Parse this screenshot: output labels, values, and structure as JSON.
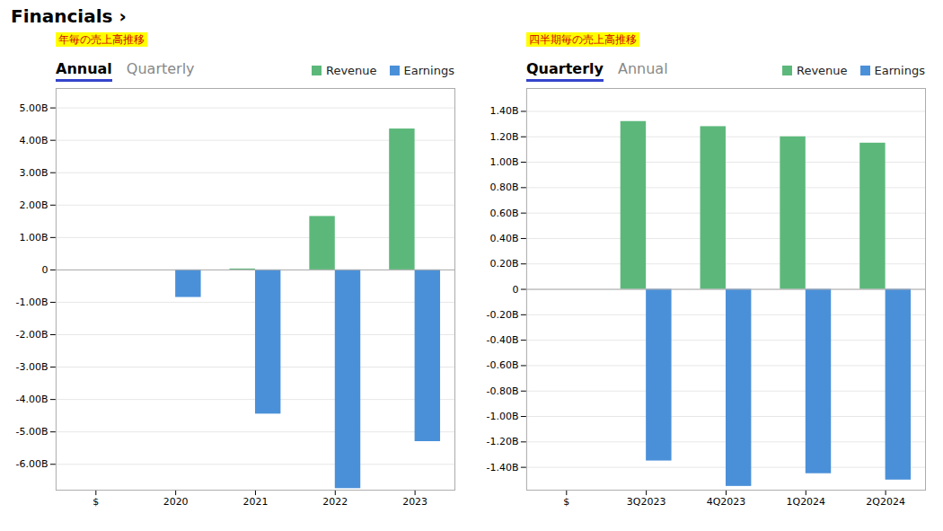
{
  "title": "Financials ›",
  "chart_data": [
    {
      "type": "bar",
      "title": "Annual",
      "annotations": [
        "年毎の売上高推移",
        "Quarterly"
      ],
      "categories": [
        "$",
        "2020",
        "2021",
        "2022",
        "2023"
      ],
      "series": [
        {
          "name": "Revenue",
          "color": "#5cb87a",
          "values": [
            null,
            null,
            0.03,
            1.65,
            4.35
          ]
        },
        {
          "name": "Earnings",
          "color": "#4a90d9",
          "values": [
            null,
            -0.85,
            -4.45,
            -6.75,
            -5.3
          ]
        }
      ],
      "ylim": [
        -6.8,
        5.6
      ],
      "yticks": [
        {
          "value": -6.0,
          "label": "-6.00B"
        },
        {
          "value": -5.0,
          "label": "-5.00B"
        },
        {
          "value": -4.0,
          "label": "-4.00B"
        },
        {
          "value": -3.0,
          "label": "-3.00B"
        },
        {
          "value": -2.0,
          "label": "-2.00B"
        },
        {
          "value": -1.0,
          "label": "-1.00B"
        },
        0,
        {
          "value": 1.0,
          "label": "1.00B"
        },
        {
          "value": 2.0,
          "label": "2.00B"
        },
        {
          "value": 3.0,
          "label": "3.00B"
        },
        {
          "value": 4.0,
          "label": "4.00B"
        },
        {
          "value": 5.0,
          "label": "5.00B"
        }
      ],
      "grid": true,
      "legend": "upper right"
    },
    {
      "type": "bar",
      "title": "Quarterly",
      "annotations": [
        "四半期毎の売上高推移",
        "Annual"
      ],
      "categories": [
        "$",
        "3Q2023",
        "4Q2023",
        "1Q2024",
        "2Q2024"
      ],
      "series": [
        {
          "name": "Revenue",
          "color": "#5cb87a",
          "values": [
            null,
            1.32,
            1.28,
            1.2,
            1.15
          ]
        },
        {
          "name": "Earnings",
          "color": "#4a90d9",
          "values": [
            null,
            -1.35,
            -1.55,
            -1.45,
            -1.5
          ]
        }
      ],
      "ylim": [
        -1.58,
        1.58
      ],
      "yticks": [
        {
          "value": -1.4,
          "label": "-1.40B"
        },
        {
          "value": -1.2,
          "label": "-1.20B"
        },
        {
          "value": -1.0,
          "label": "-1.00B"
        },
        {
          "value": -0.8,
          "label": "-0.80B"
        },
        {
          "value": -0.6,
          "label": "-0.60B"
        },
        {
          "value": -0.4,
          "label": "-0.40B"
        },
        {
          "value": -0.2,
          "label": "-0.20B"
        },
        0,
        {
          "value": 0.2,
          "label": "0.20B"
        },
        {
          "value": 0.4,
          "label": "0.40B"
        },
        {
          "value": 0.6,
          "label": "0.60B"
        },
        {
          "value": 0.8,
          "label": "0.80B"
        },
        {
          "value": 1.0,
          "label": "1.00B"
        },
        {
          "value": 1.2,
          "label": "1.20B"
        },
        {
          "value": 1.4,
          "label": "1.40B"
        }
      ],
      "grid": true,
      "legend": "upper right"
    }
  ]
}
